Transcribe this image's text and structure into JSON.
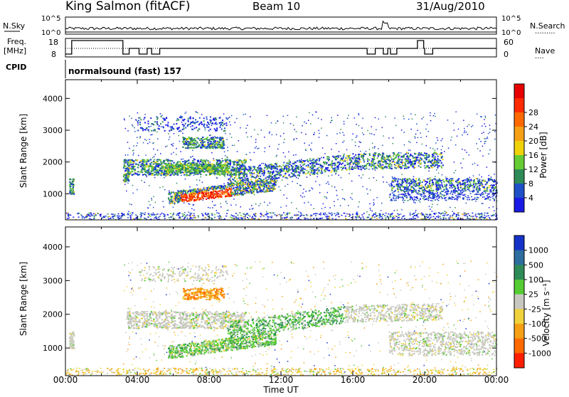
{
  "header": {
    "station": "King Salmon (fitACF)",
    "beam": "Beam 10",
    "date": "31/Aug/2010"
  },
  "strip": {
    "nsky_label": "N.Sky",
    "nsky_ticks": [
      "10^5",
      "10^0"
    ],
    "nsearch_label": "N.Search",
    "nsearch_ticks": [
      "10^5",
      "10^0"
    ],
    "freq_label_1": "Freq.",
    "freq_label_2": "[MHz]",
    "freq_ticks": [
      "18",
      "8"
    ],
    "nave_label": "Nave",
    "nave_ticks": [
      "60",
      "0"
    ],
    "cpid_label": "CPID",
    "cpid_value": "normalsound (fast) 157"
  },
  "chart_data": [
    {
      "type": "heatmap",
      "name": "power-panel",
      "ylabel": "Slant Range [km]",
      "xlabel": "Time UT",
      "x_ticks": [
        "00:00",
        "04:00",
        "08:00",
        "12:00",
        "16:00",
        "20:00",
        "00:00"
      ],
      "y_ticks": [
        "1000",
        "2000",
        "3000",
        "4000"
      ],
      "xlim_hours": [
        0,
        24
      ],
      "ylim_km": [
        180,
        4590
      ],
      "colorbar": {
        "label": "Power [dB]",
        "ticks": [
          "4",
          "8",
          "12",
          "16",
          "20",
          "24",
          "28"
        ],
        "colors": [
          "#1a1ae6",
          "#1e50c8",
          "#2e8b57",
          "#66cc33",
          "#f0d20a",
          "#f5a014",
          "#ff6a00",
          "#ff2a00",
          "#e60000"
        ]
      }
    },
    {
      "type": "heatmap",
      "name": "velocity-panel",
      "ylabel": "Slant Range [km]",
      "xlabel": "Time UT",
      "x_ticks": [
        "00:00",
        "04:00",
        "08:00",
        "12:00",
        "16:00",
        "20:00",
        "00:00"
      ],
      "y_ticks": [
        "1000",
        "2000",
        "3000",
        "4000"
      ],
      "xlim_hours": [
        0,
        24
      ],
      "ylim_km": [
        180,
        4590
      ],
      "colorbar": {
        "label": "Velocity [m s⁻¹]",
        "ticks": [
          "1000",
          "500",
          "100",
          "25",
          "-25",
          "-100",
          "-500",
          "-1000"
        ],
        "colors": [
          "#1432c8",
          "#2e6e9e",
          "#2e8b57",
          "#55cc33",
          "#c8c8c0",
          "#f0d23c",
          "#f5a014",
          "#ff6a00",
          "#ff1e00"
        ]
      }
    }
  ],
  "xaxis_title": "Time UT"
}
